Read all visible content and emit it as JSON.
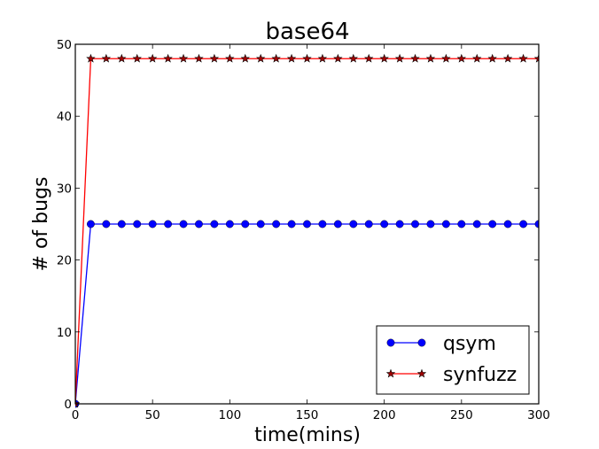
{
  "chart_data": {
    "type": "line",
    "title": "base64",
    "xlabel": "time(mins)",
    "ylabel": "# of bugs",
    "xlim": [
      0,
      300
    ],
    "ylim": [
      0,
      50
    ],
    "xticks": [
      0,
      50,
      100,
      150,
      200,
      250,
      300
    ],
    "yticks": [
      0,
      10,
      20,
      30,
      40,
      50
    ],
    "grid": false,
    "legend_position": "lower right",
    "x": [
      0,
      10,
      20,
      30,
      40,
      50,
      60,
      70,
      80,
      90,
      100,
      110,
      120,
      130,
      140,
      150,
      160,
      170,
      180,
      190,
      200,
      210,
      220,
      230,
      240,
      250,
      260,
      270,
      280,
      290,
      300
    ],
    "series": [
      {
        "name": "qsym",
        "color": "#0000ff",
        "marker": "circle",
        "values": [
          0,
          25,
          25,
          25,
          25,
          25,
          25,
          25,
          25,
          25,
          25,
          25,
          25,
          25,
          25,
          25,
          25,
          25,
          25,
          25,
          25,
          25,
          25,
          25,
          25,
          25,
          25,
          25,
          25,
          25,
          25
        ]
      },
      {
        "name": "synfuzz",
        "color": "#ff0000",
        "marker": "star",
        "values": [
          0,
          48,
          48,
          48,
          48,
          48,
          48,
          48,
          48,
          48,
          48,
          48,
          48,
          48,
          48,
          48,
          48,
          48,
          48,
          48,
          48,
          48,
          48,
          48,
          48,
          48,
          48,
          48,
          48,
          48,
          48
        ]
      }
    ]
  }
}
